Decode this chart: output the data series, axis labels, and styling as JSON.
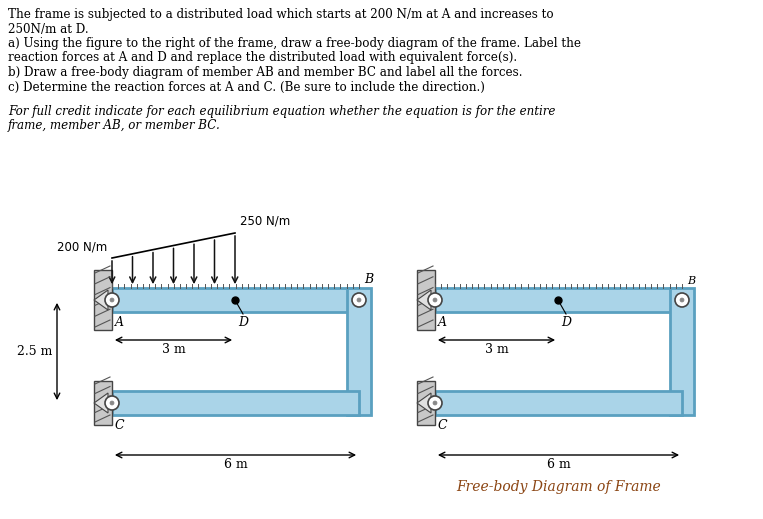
{
  "bg_color": "#ffffff",
  "text_color": "#000000",
  "frame_fill": "#aad4e8",
  "frame_edge": "#5aa0c0",
  "wall_fill": "#bbbbbb",
  "title_lines": [
    "The frame is subjected to a distributed load which starts at 200 N/m at A and increases to",
    "250N/m at D."
  ],
  "body_lines": [
    "a) Using the figure to the right of the frame, draw a free-body diagram of the frame. Label the",
    "reaction forces at A and D and replace the distributed load with equivalent force(s).",
    "b) Draw a free-body diagram of member AB and member BC and label all the forces.",
    "c) Determine the reaction forces at A and C. (Be sure to include the direction.)"
  ],
  "italic_lines": [
    "For full credit indicate for each equilibrium equation whether the equation is for the entire",
    "frame, member AB, or member BC."
  ],
  "load_label_left": "200 N/m",
  "load_label_right": "250 N/m",
  "dim_25": "2.5 m",
  "dim_3": "3 m",
  "dim_6": "6 m",
  "label_A": "A",
  "label_B": "B",
  "label_C": "C",
  "label_D": "D",
  "fbd_label": "Free-body Diagram of Frame",
  "fbd_color": "#8B4513"
}
